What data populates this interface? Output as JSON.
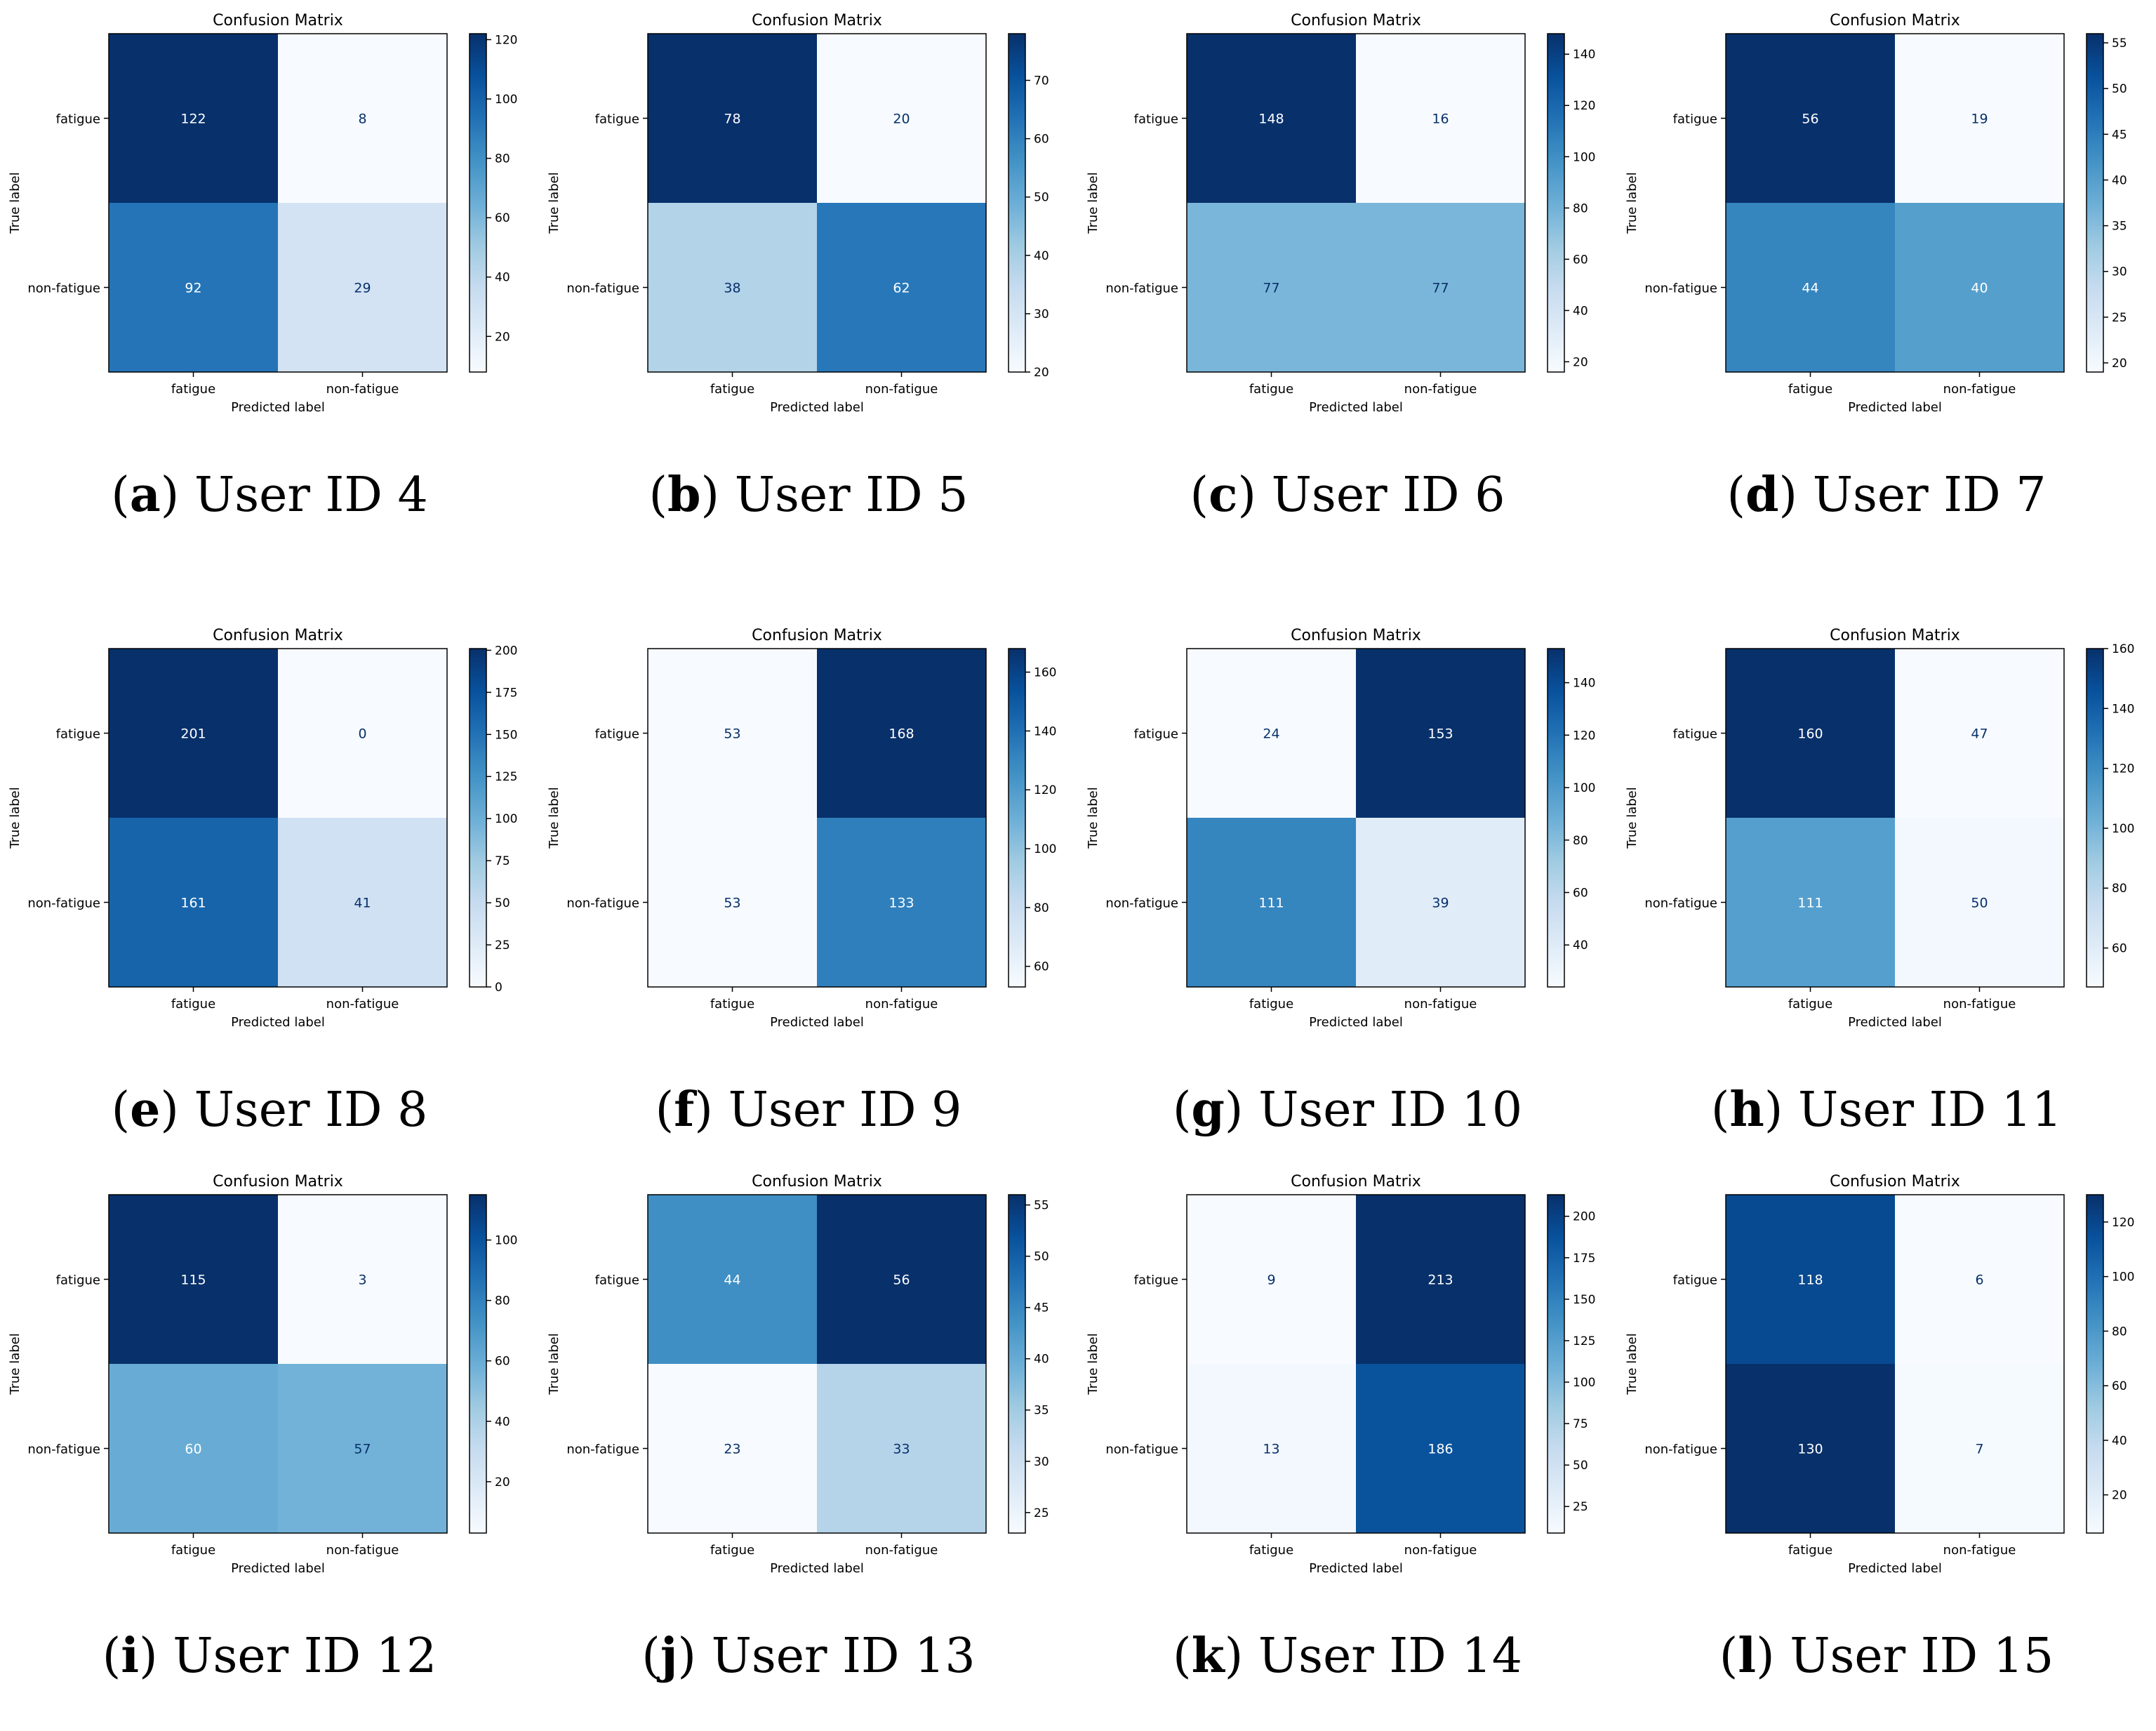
{
  "chart_data": [
    {
      "type": "heatmap",
      "panel_letter": "a",
      "caption": "User ID 4",
      "title": "Confusion Matrix",
      "xlabel": "Predicted label",
      "ylabel": "True label",
      "row_labels": [
        "fatigue",
        "non-fatigue"
      ],
      "col_labels": [
        "fatigue",
        "non-fatigue"
      ],
      "matrix": [
        [
          122,
          8
        ],
        [
          92,
          29
        ]
      ],
      "colorbar_ticks": [
        20,
        40,
        60,
        80,
        100,
        120
      ],
      "colormap": "Blues"
    },
    {
      "type": "heatmap",
      "panel_letter": "b",
      "caption": "User ID 5",
      "title": "Confusion Matrix",
      "xlabel": "Predicted label",
      "ylabel": "True label",
      "row_labels": [
        "fatigue",
        "non-fatigue"
      ],
      "col_labels": [
        "fatigue",
        "non-fatigue"
      ],
      "matrix": [
        [
          78,
          20
        ],
        [
          38,
          62
        ]
      ],
      "colorbar_ticks": [
        20,
        30,
        40,
        50,
        60,
        70
      ],
      "colormap": "Blues"
    },
    {
      "type": "heatmap",
      "panel_letter": "c",
      "caption": "User ID 6",
      "title": "Confusion Matrix",
      "xlabel": "Predicted label",
      "ylabel": "True label",
      "row_labels": [
        "fatigue",
        "non-fatigue"
      ],
      "col_labels": [
        "fatigue",
        "non-fatigue"
      ],
      "matrix": [
        [
          148,
          16
        ],
        [
          77,
          77
        ]
      ],
      "colorbar_ticks": [
        20,
        40,
        60,
        80,
        100,
        120,
        140
      ],
      "colormap": "Blues"
    },
    {
      "type": "heatmap",
      "panel_letter": "d",
      "caption": "User ID 7",
      "title": "Confusion Matrix",
      "xlabel": "Predicted label",
      "ylabel": "True label",
      "row_labels": [
        "fatigue",
        "non-fatigue"
      ],
      "col_labels": [
        "fatigue",
        "non-fatigue"
      ],
      "matrix": [
        [
          56,
          19
        ],
        [
          44,
          40
        ]
      ],
      "colorbar_ticks": [
        20,
        25,
        30,
        35,
        40,
        45,
        50,
        55
      ],
      "colormap": "Blues"
    },
    {
      "type": "heatmap",
      "panel_letter": "e",
      "caption": "User ID 8",
      "title": "Confusion Matrix",
      "xlabel": "Predicted label",
      "ylabel": "True label",
      "row_labels": [
        "fatigue",
        "non-fatigue"
      ],
      "col_labels": [
        "fatigue",
        "non-fatigue"
      ],
      "matrix": [
        [
          201,
          0
        ],
        [
          161,
          41
        ]
      ],
      "colorbar_ticks": [
        0,
        25,
        50,
        75,
        100,
        125,
        150,
        175,
        200
      ],
      "colormap": "Blues"
    },
    {
      "type": "heatmap",
      "panel_letter": "f",
      "caption": "User ID 9",
      "title": "Confusion Matrix",
      "xlabel": "Predicted label",
      "ylabel": "True label",
      "row_labels": [
        "fatigue",
        "non-fatigue"
      ],
      "col_labels": [
        "fatigue",
        "non-fatigue"
      ],
      "matrix": [
        [
          53,
          168
        ],
        [
          53,
          133
        ]
      ],
      "colorbar_ticks": [
        60,
        80,
        100,
        120,
        140,
        160
      ],
      "colormap": "Blues"
    },
    {
      "type": "heatmap",
      "panel_letter": "g",
      "caption": "User ID 10",
      "title": "Confusion Matrix",
      "xlabel": "Predicted label",
      "ylabel": "True label",
      "row_labels": [
        "fatigue",
        "non-fatigue"
      ],
      "col_labels": [
        "fatigue",
        "non-fatigue"
      ],
      "matrix": [
        [
          24,
          153
        ],
        [
          111,
          39
        ]
      ],
      "colorbar_ticks": [
        40,
        60,
        80,
        100,
        120,
        140
      ],
      "colormap": "Blues"
    },
    {
      "type": "heatmap",
      "panel_letter": "h",
      "caption": "User ID 11",
      "title": "Confusion Matrix",
      "xlabel": "Predicted label",
      "ylabel": "True label",
      "row_labels": [
        "fatigue",
        "non-fatigue"
      ],
      "col_labels": [
        "fatigue",
        "non-fatigue"
      ],
      "matrix": [
        [
          160,
          47
        ],
        [
          111,
          50
        ]
      ],
      "colorbar_ticks": [
        60,
        80,
        100,
        120,
        140,
        160
      ],
      "colormap": "Blues"
    },
    {
      "type": "heatmap",
      "panel_letter": "i",
      "caption": "User ID 12",
      "title": "Confusion Matrix",
      "xlabel": "Predicted label",
      "ylabel": "True label",
      "row_labels": [
        "fatigue",
        "non-fatigue"
      ],
      "col_labels": [
        "fatigue",
        "non-fatigue"
      ],
      "matrix": [
        [
          115,
          3
        ],
        [
          60,
          57
        ]
      ],
      "colorbar_ticks": [
        20,
        40,
        60,
        80,
        100
      ],
      "colormap": "Blues"
    },
    {
      "type": "heatmap",
      "panel_letter": "j",
      "caption": "User ID 13",
      "title": "Confusion Matrix",
      "xlabel": "Predicted label",
      "ylabel": "True label",
      "row_labels": [
        "fatigue",
        "non-fatigue"
      ],
      "col_labels": [
        "fatigue",
        "non-fatigue"
      ],
      "matrix": [
        [
          44,
          56
        ],
        [
          23,
          33
        ]
      ],
      "colorbar_ticks": [
        25,
        30,
        35,
        40,
        45,
        50,
        55
      ],
      "colormap": "Blues"
    },
    {
      "type": "heatmap",
      "panel_letter": "k",
      "caption": "User ID 14",
      "title": "Confusion Matrix",
      "xlabel": "Predicted label",
      "ylabel": "True label",
      "row_labels": [
        "fatigue",
        "non-fatigue"
      ],
      "col_labels": [
        "fatigue",
        "non-fatigue"
      ],
      "matrix": [
        [
          9,
          213
        ],
        [
          13,
          186
        ]
      ],
      "colorbar_ticks": [
        25,
        50,
        75,
        100,
        125,
        150,
        175,
        200
      ],
      "colormap": "Blues"
    },
    {
      "type": "heatmap",
      "panel_letter": "l",
      "caption": "User ID 15",
      "title": "Confusion Matrix",
      "xlabel": "Predicted label",
      "ylabel": "True label",
      "row_labels": [
        "fatigue",
        "non-fatigue"
      ],
      "col_labels": [
        "fatigue",
        "non-fatigue"
      ],
      "matrix": [
        [
          118,
          6
        ],
        [
          130,
          7
        ]
      ],
      "colorbar_ticks": [
        20,
        40,
        60,
        80,
        100,
        120
      ],
      "colormap": "Blues"
    }
  ]
}
